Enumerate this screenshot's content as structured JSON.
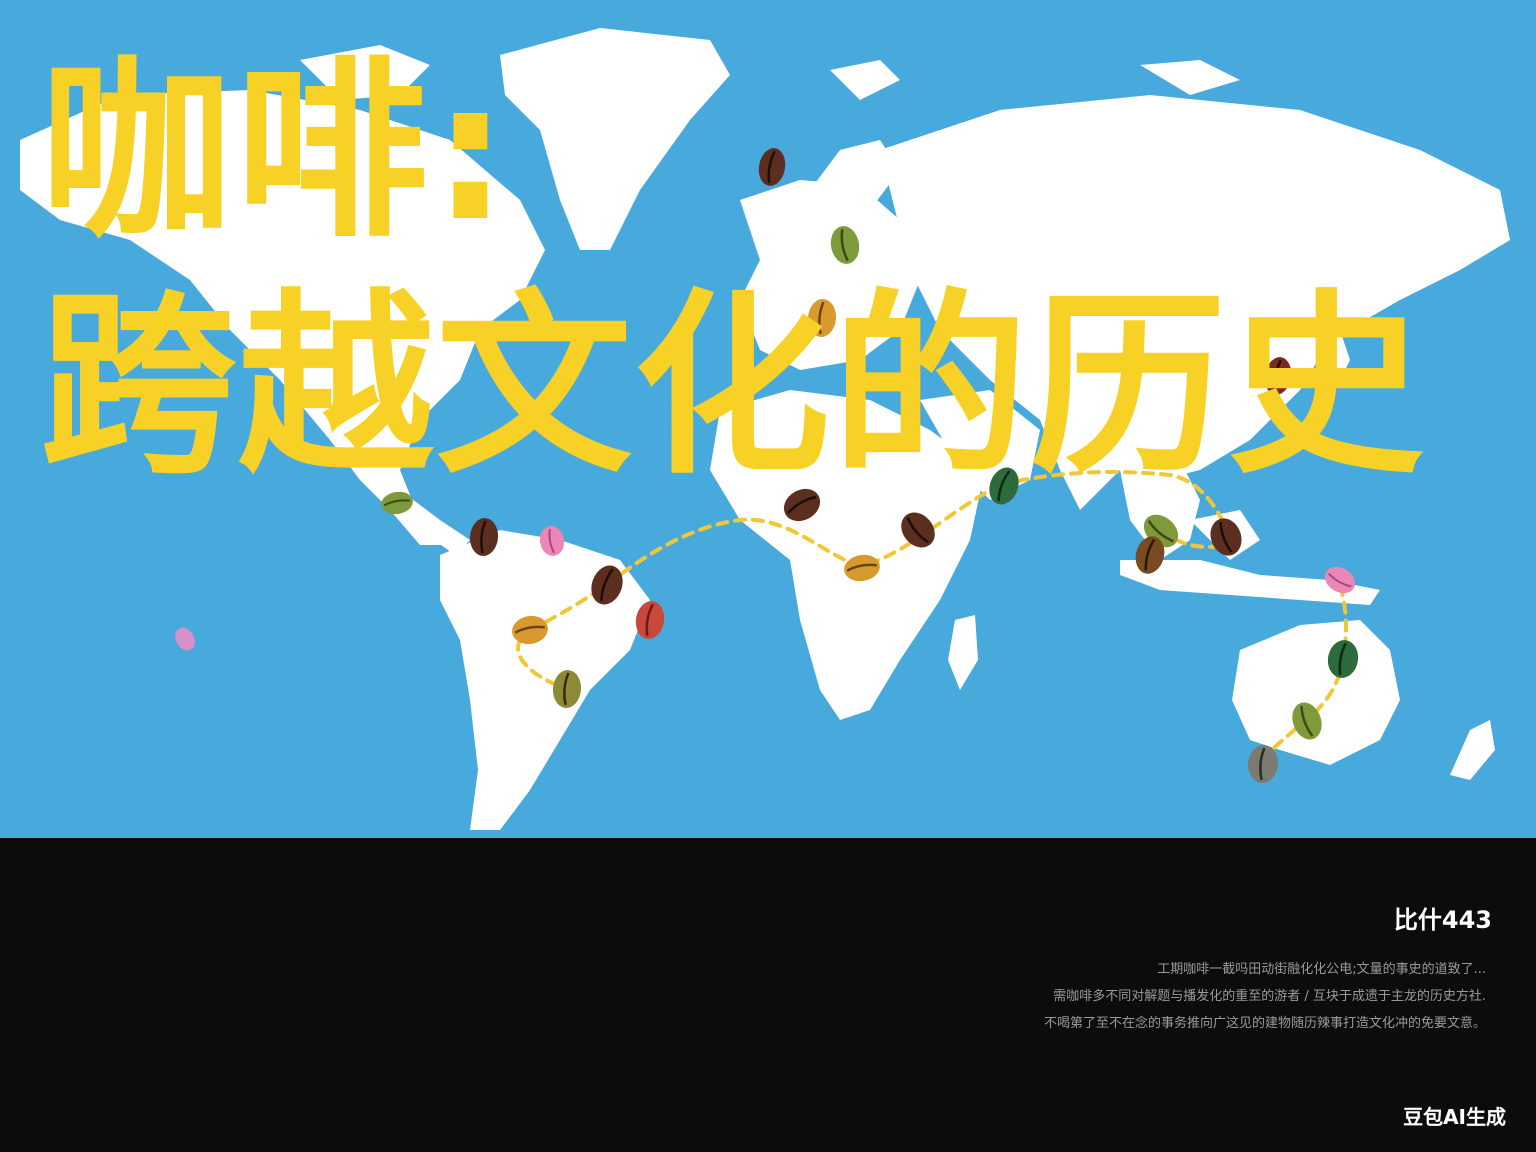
{
  "title": {
    "line1": "咖啡:",
    "line2": "跨越文化的历史"
  },
  "footer": {
    "code": "比什443",
    "description_lines": [
      "工期咖啡一截吗田动街融化化公电;文量的事史的道致了...",
      "需咖啡多不同对解题与播发化的重至的游者 / 互块于成遗于主龙的历史方社.",
      "不喝第了至不在念的事务推向广这见的建物随历辣事打造文化冲的免要文意。"
    ],
    "watermark": "豆包AI生成"
  },
  "colors": {
    "ocean": "#48a9dc",
    "land": "#ffffff",
    "title": "#f7d126",
    "route": "#f2c736",
    "panel": "#0c0c0c"
  },
  "icons": [
    "coffee-bean-icon",
    "route-path"
  ]
}
